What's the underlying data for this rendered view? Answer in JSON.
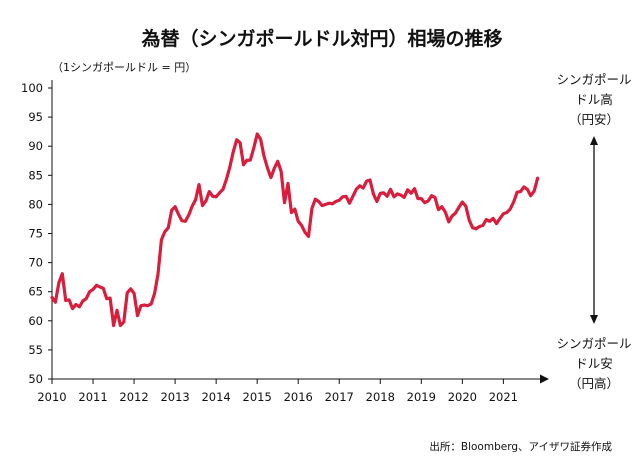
{
  "chart_data": {
    "type": "line",
    "title": "為替（シンガポールドル対円）相場の推移",
    "unit_label": "（1シンガポールドル = 円）",
    "x_ticks": [
      "2010",
      "2011",
      "2012",
      "2013",
      "2014",
      "2015",
      "2016",
      "2017",
      "2018",
      "2019",
      "2020",
      "2021"
    ],
    "y_ticks": [
      "100",
      "95",
      "90",
      "85",
      "80",
      "75",
      "70",
      "65",
      "60",
      "55",
      "50"
    ],
    "ylim": [
      50,
      100
    ],
    "xlim": [
      "2010-01",
      "2021-12"
    ],
    "grid": false,
    "series": [
      {
        "color": "#d81e3c",
        "x": [
          "2010-01",
          "2010-02",
          "2010-03",
          "2010-04",
          "2010-05",
          "2010-06",
          "2010-07",
          "2010-08",
          "2010-09",
          "2010-10",
          "2010-11",
          "2010-12",
          "2011-01",
          "2011-02",
          "2011-03",
          "2011-04",
          "2011-05",
          "2011-06",
          "2011-07",
          "2011-08",
          "2011-09",
          "2011-10",
          "2011-11",
          "2011-12",
          "2012-01",
          "2012-02",
          "2012-03",
          "2012-04",
          "2012-05",
          "2012-06",
          "2012-07",
          "2012-08",
          "2012-09",
          "2012-10",
          "2012-11",
          "2012-12",
          "2013-01",
          "2013-02",
          "2013-03",
          "2013-04",
          "2013-05",
          "2013-06",
          "2013-07",
          "2013-08",
          "2013-09",
          "2013-10",
          "2013-11",
          "2013-12",
          "2014-01",
          "2014-02",
          "2014-03",
          "2014-04",
          "2014-05",
          "2014-06",
          "2014-07",
          "2014-08",
          "2014-09",
          "2014-10",
          "2014-11",
          "2014-12",
          "2015-01",
          "2015-02",
          "2015-03",
          "2015-04",
          "2015-05",
          "2015-06",
          "2015-07",
          "2015-08",
          "2015-09",
          "2015-10",
          "2015-11",
          "2015-12",
          "2016-01",
          "2016-02",
          "2016-03",
          "2016-04",
          "2016-05",
          "2016-06",
          "2016-07",
          "2016-08",
          "2016-09",
          "2016-10",
          "2016-11",
          "2016-12",
          "2017-01",
          "2017-02",
          "2017-03",
          "2017-04",
          "2017-05",
          "2017-06",
          "2017-07",
          "2017-08",
          "2017-09",
          "2017-10",
          "2017-11",
          "2017-12",
          "2018-01",
          "2018-02",
          "2018-03",
          "2018-04",
          "2018-05",
          "2018-06",
          "2018-07",
          "2018-08",
          "2018-09",
          "2018-10",
          "2018-11",
          "2018-12",
          "2019-01",
          "2019-02",
          "2019-03",
          "2019-04",
          "2019-05",
          "2019-06",
          "2019-07",
          "2019-08",
          "2019-09",
          "2019-10",
          "2019-11",
          "2019-12",
          "2020-01",
          "2020-02",
          "2020-03",
          "2020-04",
          "2020-05",
          "2020-06",
          "2020-07",
          "2020-08",
          "2020-09",
          "2020-10",
          "2020-11",
          "2020-12",
          "2021-01",
          "2021-02",
          "2021-03",
          "2021-04",
          "2021-05",
          "2021-06",
          "2021-07",
          "2021-08",
          "2021-09",
          "2021-10",
          "2021-11"
        ],
        "y": [
          64,
          63.2,
          66.5,
          68.1,
          63.5,
          63.6,
          62.1,
          62.8,
          62.4,
          63.4,
          63.8,
          65,
          65.4,
          66.1,
          65.8,
          65.6,
          63.8,
          63.9,
          59.2,
          61.8,
          59.2,
          59.8,
          64.8,
          65.5,
          64.7,
          60.9,
          62.6,
          62.7,
          62.6,
          62.9,
          64.7,
          68,
          73.9,
          75.3,
          76,
          79,
          79.6,
          78.3,
          77.2,
          77.1,
          78.2,
          79.7,
          80.8,
          83.4,
          79.8,
          80.6,
          82.2,
          81.4,
          81.3,
          82,
          82.6,
          84.3,
          86.4,
          89,
          91.1,
          90.6,
          86.8,
          87.6,
          87.6,
          89.7,
          92.1,
          91.2,
          88.3,
          86.3,
          84.6,
          86.2,
          87.4,
          85.7,
          80.3,
          83.6,
          78.6,
          79.2,
          77.1,
          76.4,
          75.2,
          74.5,
          79.3,
          80.9,
          80.5,
          79.8,
          80,
          80.2,
          80.1,
          80.5,
          80.7,
          81.3,
          81.4,
          80.2,
          81.4,
          82.6,
          83.2,
          82.8,
          84,
          84.2,
          81.8,
          80.5,
          81.9,
          82,
          81.4,
          82.6,
          81.3,
          81.8,
          81.6,
          81.2,
          82.5,
          81.9,
          82.7,
          81,
          81,
          80.3,
          80.6,
          81.5,
          81.2,
          79.1,
          79.6,
          78.7,
          77,
          78,
          78.5,
          79.5,
          80.4,
          79.7,
          77.3,
          76,
          75.8,
          76.2,
          76.4,
          77.4,
          77.1,
          77.6,
          76.7,
          77.6,
          78.4,
          78.6,
          79.2,
          80.4,
          82.1,
          82.2,
          83,
          82.6,
          81.5,
          82.3,
          84.5
        ]
      }
    ]
  },
  "annotations": {
    "top_label": [
      "シンガポール",
      "ドル高",
      "（円安）"
    ],
    "bottom_label": [
      "シンガポール",
      "ドル安",
      "（円高）"
    ]
  },
  "source": "出所：Bloomberg、アイザワ証券作成"
}
